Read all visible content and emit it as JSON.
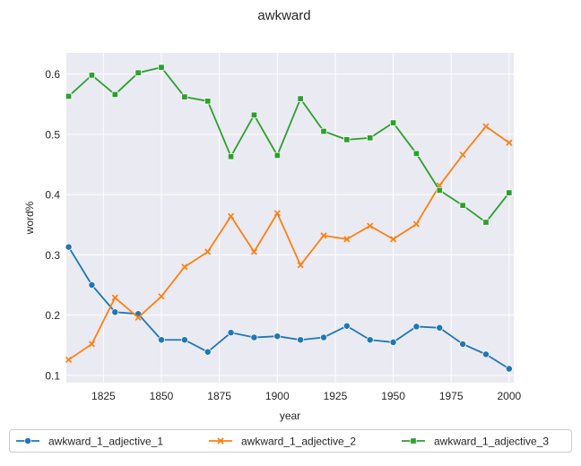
{
  "chart_data": {
    "type": "line",
    "title": "awkward",
    "xlabel": "year",
    "ylabel": "word%",
    "xlim": [
      1809,
      2002
    ],
    "ylim": [
      0.088,
      0.635
    ],
    "xticks": [
      1825,
      1850,
      1875,
      1900,
      1925,
      1950,
      1975,
      2000
    ],
    "yticks": [
      0.1,
      0.2,
      0.3,
      0.4,
      0.5,
      0.6
    ],
    "grid": true,
    "legend_position": "bottom",
    "background_color": "#eaeaf2",
    "x": [
      1810,
      1820,
      1830,
      1840,
      1850,
      1860,
      1870,
      1880,
      1890,
      1900,
      1910,
      1920,
      1930,
      1940,
      1950,
      1960,
      1970,
      1980,
      1990,
      2000
    ],
    "series": [
      {
        "name": "awkward_1_adjective_1",
        "color": "#1f77b4",
        "marker": "circle",
        "values": [
          0.313,
          0.25,
          0.205,
          0.202,
          0.159,
          0.159,
          0.139,
          0.171,
          0.163,
          0.165,
          0.159,
          0.163,
          0.182,
          0.159,
          0.155,
          0.181,
          0.179,
          0.152,
          0.135,
          0.111
        ]
      },
      {
        "name": "awkward_1_adjective_2",
        "color": "#ff7f0e",
        "marker": "x",
        "values": [
          0.126,
          0.152,
          0.229,
          0.196,
          0.231,
          0.28,
          0.305,
          0.364,
          0.305,
          0.369,
          0.283,
          0.332,
          0.326,
          0.348,
          0.326,
          0.351,
          0.415,
          0.466,
          0.513,
          0.486
        ]
      },
      {
        "name": "awkward_1_adjective_3",
        "color": "#2ca02c",
        "marker": "square",
        "values": [
          0.563,
          0.598,
          0.566,
          0.602,
          0.611,
          0.562,
          0.555,
          0.463,
          0.532,
          0.465,
          0.559,
          0.505,
          0.491,
          0.494,
          0.519,
          0.468,
          0.407,
          0.382,
          0.354,
          0.403
        ]
      }
    ]
  }
}
